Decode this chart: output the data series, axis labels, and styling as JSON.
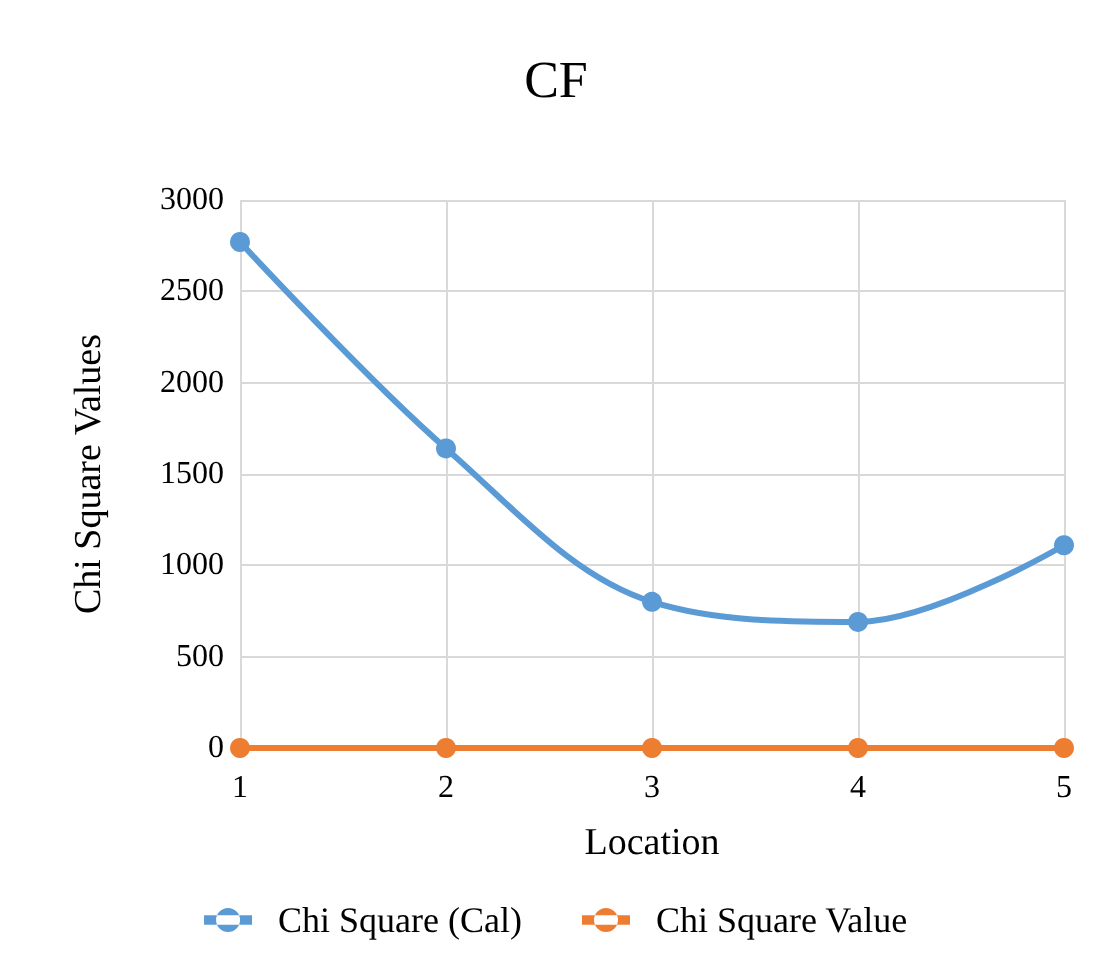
{
  "chart_data": {
    "type": "line",
    "title": "CF",
    "xlabel": "Location",
    "ylabel": "Chi Square Values",
    "x": [
      1,
      2,
      3,
      4,
      5
    ],
    "xlim": [
      1,
      5
    ],
    "xticks": [
      1,
      2,
      3,
      4,
      5
    ],
    "ylim": [
      0,
      3000
    ],
    "yticks": [
      0,
      500,
      1000,
      1500,
      2000,
      2500,
      3000
    ],
    "series": [
      {
        "name": "Chi Square (Cal)",
        "color": "#5b9bd5",
        "values": [
          2770,
          1640,
          800,
          690,
          1110
        ]
      },
      {
        "name": "Chi Square Value",
        "color": "#ed7d31",
        "values": [
          0,
          0,
          0,
          0,
          0
        ]
      }
    ],
    "grid": true,
    "legend": "bottom",
    "marker": "circle",
    "line_style": "solid"
  }
}
